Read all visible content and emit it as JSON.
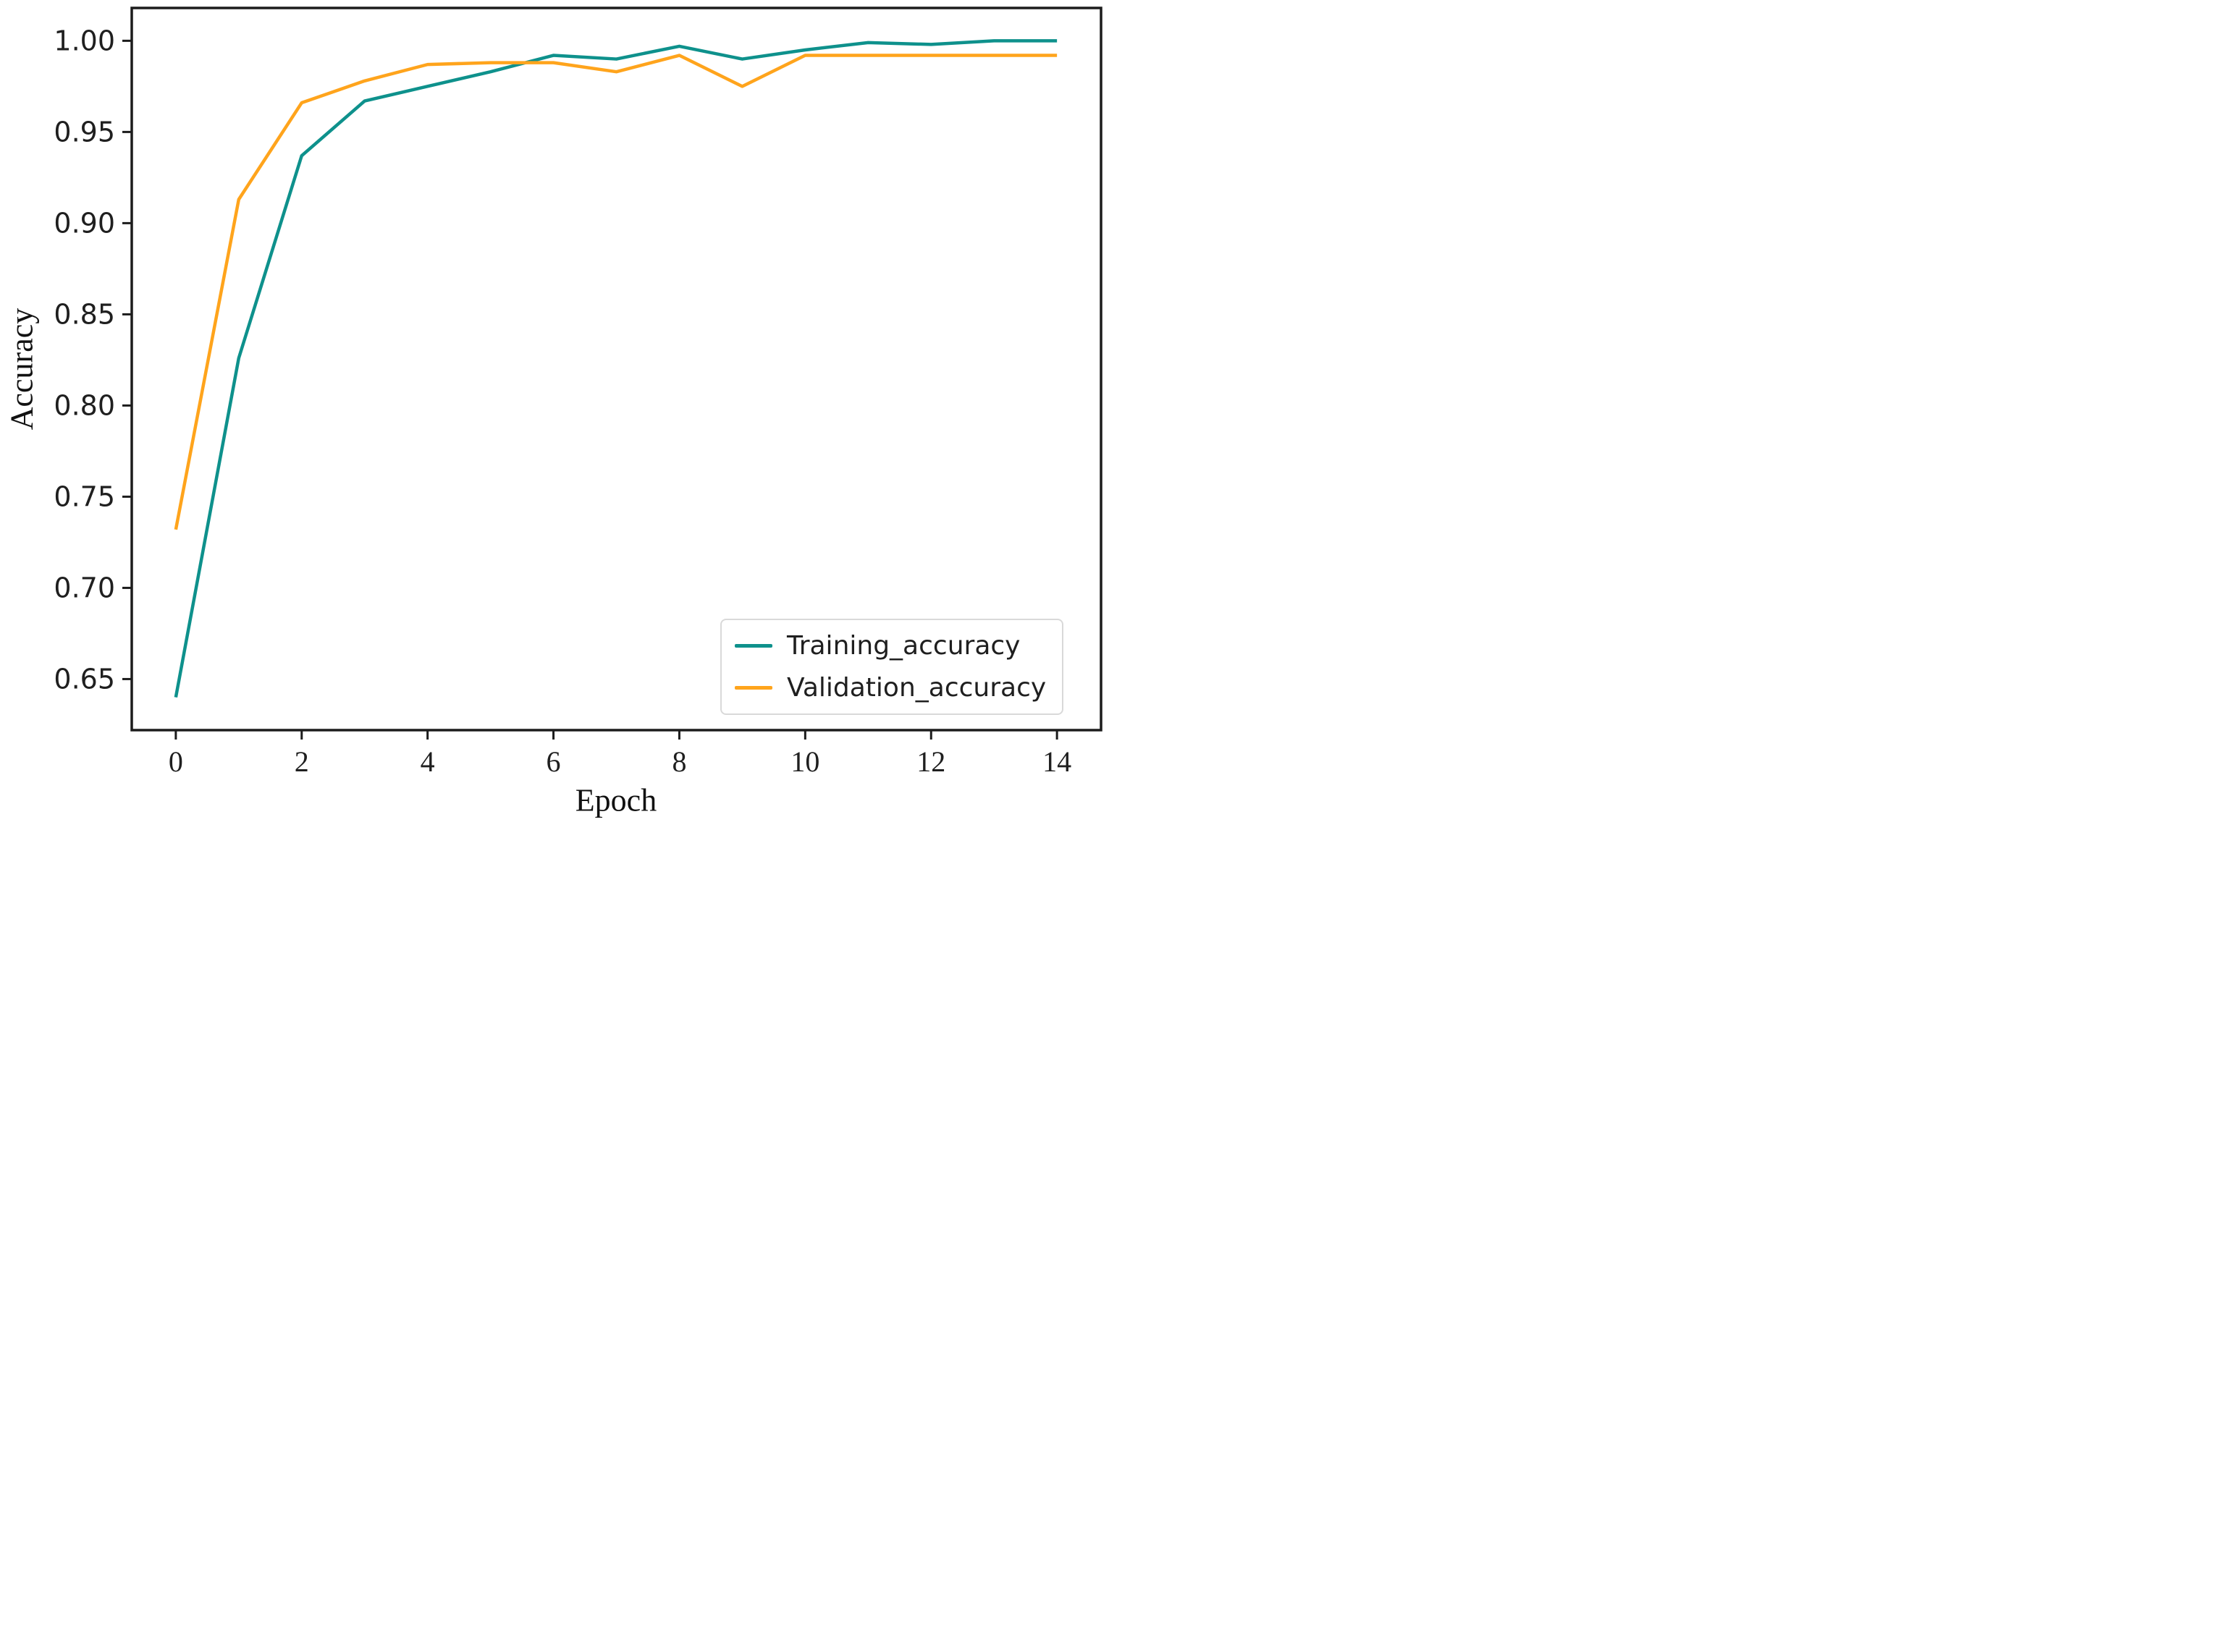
{
  "figure": {
    "xlabel": "Epoch",
    "ylabel": "Accuracy"
  },
  "chart_data": {
    "type": "line",
    "title": "",
    "xlabel": "Epoch",
    "ylabel": "Accuracy",
    "x": [
      0,
      1,
      2,
      3,
      4,
      5,
      6,
      7,
      8,
      9,
      10,
      11,
      12,
      13,
      14
    ],
    "series": [
      {
        "name": "Training_accuracy",
        "color": "#0e918c",
        "values": [
          0.64,
          0.826,
          0.937,
          0.967,
          0.975,
          0.983,
          0.992,
          0.99,
          0.997,
          0.99,
          0.995,
          0.999,
          0.998,
          1.0,
          1.0
        ]
      },
      {
        "name": "Validation_accuracy",
        "color": "#ffa41c",
        "values": [
          0.732,
          0.913,
          0.966,
          0.978,
          0.987,
          0.988,
          0.988,
          0.983,
          0.992,
          0.975,
          0.992,
          0.992,
          0.992,
          0.992,
          0.992
        ]
      }
    ],
    "xlim": [
      -0.7,
      14.7
    ],
    "ylim": [
      0.622,
      1.018
    ],
    "xticks": [
      0,
      2,
      4,
      6,
      8,
      10,
      12,
      14
    ],
    "yticks": [
      0.65,
      0.7,
      0.75,
      0.8,
      0.85,
      0.9,
      0.95,
      1.0
    ],
    "grid": false,
    "legend_position": "lower right",
    "spine_color": "#1c1c1c",
    "tick_color": "#1c1c1c"
  }
}
